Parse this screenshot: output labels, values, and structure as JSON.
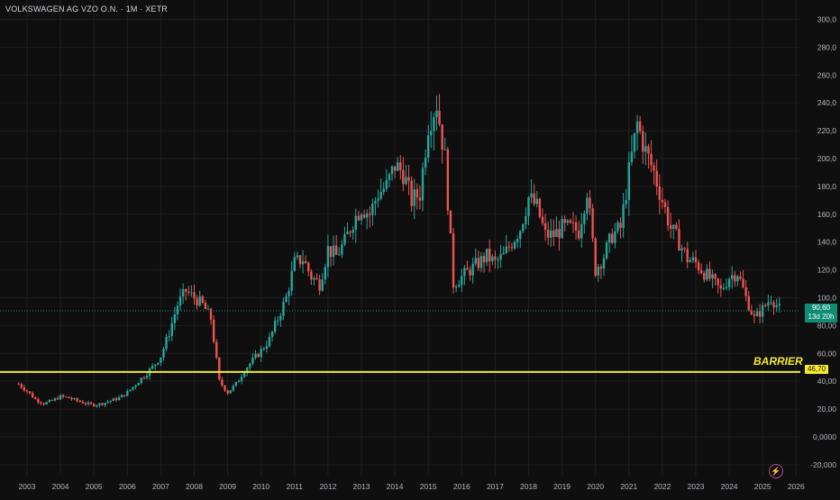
{
  "header": {
    "title": "VOLKSWAGEN AG VZO O.N. · 1M · XETR"
  },
  "colors": {
    "background": "#0f0f0f",
    "up": "#26a69a",
    "down": "#ef5350",
    "barrier": "#f5ea2a",
    "last_price": "#0f8c73"
  },
  "barrier": {
    "label": "BARRIER",
    "value_label": "46,70",
    "value": 46.7
  },
  "last_price": {
    "value": 90.6,
    "value_label": "90,60",
    "countdown": "13d 20h"
  },
  "icons": {
    "bottom_right": "lightning-bolt-icon"
  },
  "chart_data": {
    "type": "candlestick",
    "title": "VOLKSWAGEN AG VZO O.N. · 1M · XETR",
    "x_axis_labels": [
      "2003",
      "2004",
      "2005",
      "2006",
      "2007",
      "2008",
      "2009",
      "2010",
      "2011",
      "2012",
      "2013",
      "2014",
      "2015",
      "2016",
      "2017",
      "2018",
      "2019",
      "2020",
      "2021",
      "2022",
      "2023",
      "2024",
      "2025",
      "2026"
    ],
    "y_axis_labels": [
      "300,0",
      "280,0",
      "260,0",
      "240,0",
      "220,0",
      "200,0",
      "180,0",
      "160,0",
      "140,0",
      "120,0",
      "100,0",
      "80,00",
      "60,00",
      "40,00",
      "20,00",
      "0,0000",
      "-20,000"
    ],
    "y_range": [
      -20,
      300
    ],
    "x_range": [
      2002.7,
      2026.1
    ],
    "grid": true,
    "closes_by_quarter": [
      [
        2002.75,
        38
      ],
      [
        2003.0,
        33
      ],
      [
        2003.25,
        27
      ],
      [
        2003.5,
        24
      ],
      [
        2003.75,
        26
      ],
      [
        2004.0,
        29
      ],
      [
        2004.25,
        28
      ],
      [
        2004.5,
        26
      ],
      [
        2004.75,
        24
      ],
      [
        2005.0,
        23
      ],
      [
        2005.25,
        24
      ],
      [
        2005.5,
        26
      ],
      [
        2005.75,
        28
      ],
      [
        2006.0,
        32
      ],
      [
        2006.25,
        38
      ],
      [
        2006.5,
        44
      ],
      [
        2006.75,
        50
      ],
      [
        2007.0,
        58
      ],
      [
        2007.25,
        75
      ],
      [
        2007.5,
        95
      ],
      [
        2007.75,
        105
      ],
      [
        2008.0,
        100
      ],
      [
        2008.25,
        95
      ],
      [
        2008.5,
        85
      ],
      [
        2008.75,
        40
      ],
      [
        2009.0,
        32
      ],
      [
        2009.25,
        38
      ],
      [
        2009.5,
        48
      ],
      [
        2009.75,
        55
      ],
      [
        2010.0,
        62
      ],
      [
        2010.25,
        70
      ],
      [
        2010.5,
        85
      ],
      [
        2010.75,
        100
      ],
      [
        2011.0,
        125
      ],
      [
        2011.25,
        128
      ],
      [
        2011.5,
        115
      ],
      [
        2011.75,
        110
      ],
      [
        2012.0,
        135
      ],
      [
        2012.25,
        130
      ],
      [
        2012.5,
        140
      ],
      [
        2012.75,
        155
      ],
      [
        2013.0,
        165
      ],
      [
        2013.25,
        160
      ],
      [
        2013.5,
        175
      ],
      [
        2013.75,
        180
      ],
      [
        2014.0,
        195
      ],
      [
        2014.25,
        190
      ],
      [
        2014.5,
        170
      ],
      [
        2014.75,
        175
      ],
      [
        2015.0,
        225
      ],
      [
        2015.25,
        240
      ],
      [
        2015.5,
        200
      ],
      [
        2015.75,
        110
      ],
      [
        2016.0,
        115
      ],
      [
        2016.25,
        120
      ],
      [
        2016.5,
        125
      ],
      [
        2016.75,
        130
      ],
      [
        2017.0,
        125
      ],
      [
        2017.25,
        130
      ],
      [
        2017.5,
        140
      ],
      [
        2017.75,
        150
      ],
      [
        2018.0,
        172
      ],
      [
        2018.25,
        165
      ],
      [
        2018.5,
        145
      ],
      [
        2018.75,
        145
      ],
      [
        2019.0,
        150
      ],
      [
        2019.25,
        150
      ],
      [
        2019.5,
        148
      ],
      [
        2019.75,
        178
      ],
      [
        2020.0,
        120
      ],
      [
        2020.25,
        130
      ],
      [
        2020.5,
        145
      ],
      [
        2020.75,
        150
      ],
      [
        2021.0,
        190
      ],
      [
        2021.25,
        225
      ],
      [
        2021.5,
        205
      ],
      [
        2021.75,
        190
      ],
      [
        2022.0,
        170
      ],
      [
        2022.25,
        150
      ],
      [
        2022.5,
        140
      ],
      [
        2022.75,
        128
      ],
      [
        2023.0,
        125
      ],
      [
        2023.25,
        118
      ],
      [
        2023.5,
        112
      ],
      [
        2023.75,
        105
      ],
      [
        2024.0,
        115
      ],
      [
        2024.25,
        118
      ],
      [
        2024.5,
        100
      ],
      [
        2024.75,
        85
      ],
      [
        2025.0,
        92
      ],
      [
        2025.25,
        100
      ],
      [
        2025.5,
        92
      ],
      [
        2025.58,
        90.6
      ]
    ],
    "horizontal_lines": [
      {
        "label": "BARRIER",
        "value": 46.7
      },
      {
        "label": "90,60",
        "value": 90.6
      }
    ]
  }
}
